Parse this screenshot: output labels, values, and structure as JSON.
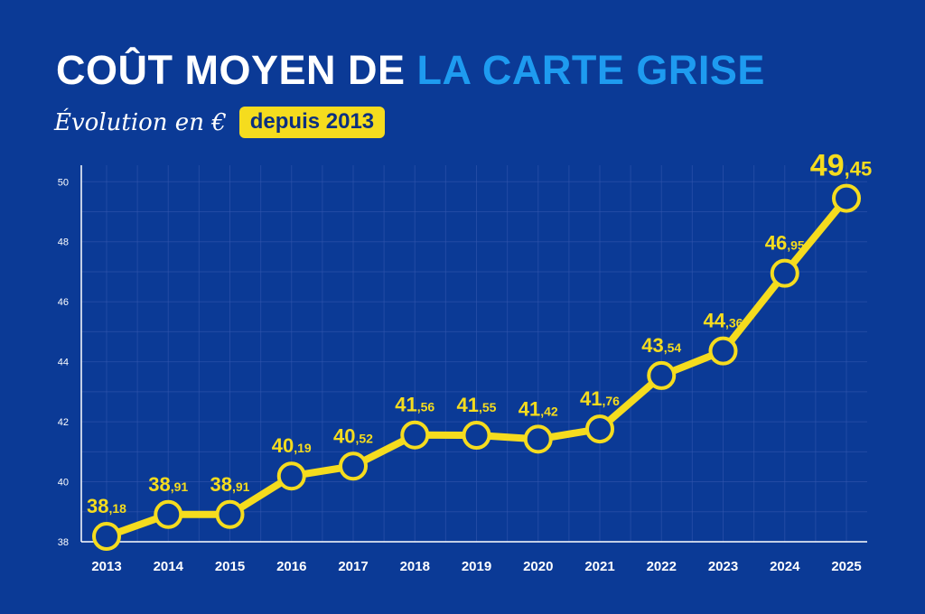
{
  "header": {
    "title_part1": "COÛT MOYEN DE",
    "title_part2": "LA CARTE GRISE",
    "subtitle_script": "Évolution en €",
    "subtitle_badge": "depuis 2013"
  },
  "colors": {
    "background": "#0b3a96",
    "title_white": "#ffffff",
    "title_blue": "#1e9bf0",
    "line_yellow": "#f5dc1e",
    "grid": "#3558b0"
  },
  "chart_data": {
    "type": "line",
    "title": "COÛT MOYEN DE LA CARTE GRISE",
    "subtitle": "Évolution en € depuis 2013",
    "xlabel": "",
    "ylabel": "",
    "categories": [
      "2013",
      "2014",
      "2015",
      "2016",
      "2017",
      "2018",
      "2019",
      "2020",
      "2021",
      "2022",
      "2023",
      "2024",
      "2025"
    ],
    "series": [
      {
        "values": [
          38.18,
          38.91,
          38.91,
          40.19,
          40.52,
          41.56,
          41.55,
          41.42,
          41.76,
          43.54,
          44.36,
          46.95,
          49.45
        ]
      }
    ],
    "data_labels": [
      {
        "int": "38",
        "dec": ",18"
      },
      {
        "int": "38",
        "dec": ",91"
      },
      {
        "int": "38",
        "dec": ",91"
      },
      {
        "int": "40",
        "dec": ",19"
      },
      {
        "int": "40",
        "dec": ",52"
      },
      {
        "int": "41",
        "dec": ",56"
      },
      {
        "int": "41",
        "dec": ",55"
      },
      {
        "int": "41",
        "dec": ",42"
      },
      {
        "int": "41",
        "dec": ",76"
      },
      {
        "int": "43",
        "dec": ",54"
      },
      {
        "int": "44",
        "dec": ",36"
      },
      {
        "int": "46",
        "dec": ",95"
      },
      {
        "int": "49",
        "dec": ",45"
      }
    ],
    "y_ticks": [
      "38",
      "40",
      "42",
      "44",
      "46",
      "48",
      "50"
    ],
    "ylim": [
      38,
      50.4
    ],
    "grid": true,
    "legend": "none"
  }
}
